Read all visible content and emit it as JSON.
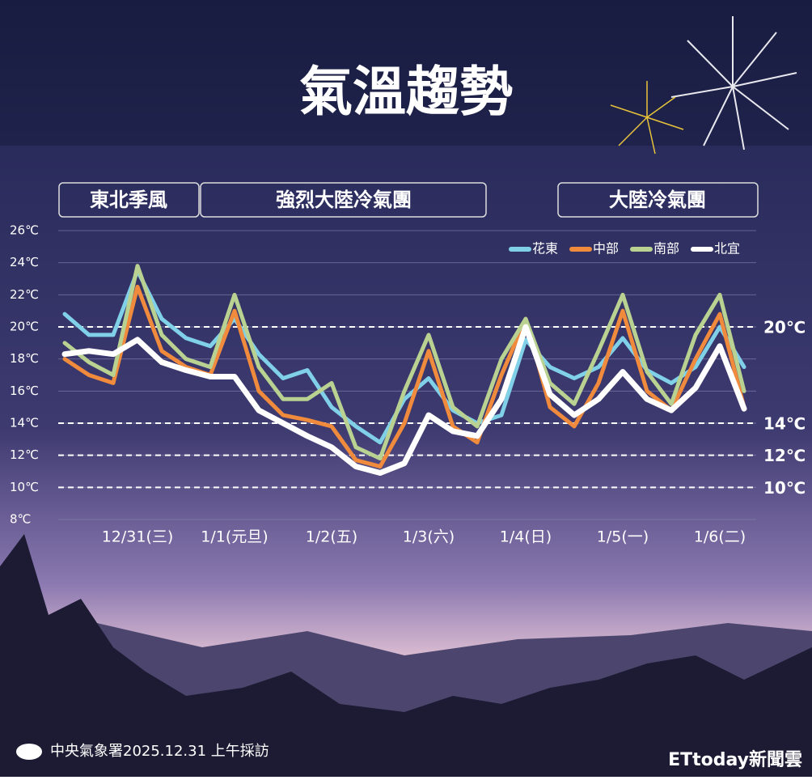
{
  "chart_data": {
    "type": "line",
    "title": "氣溫趨勢",
    "annotations": [
      "東北季風",
      "強烈大陸冷氣團",
      "大陸冷氣團"
    ],
    "categories": [
      null,
      null,
      null,
      "12/31(三)",
      null,
      null,
      null,
      "1/1(元旦)",
      null,
      null,
      null,
      "1/2(五)",
      null,
      null,
      null,
      "1/3(六)",
      null,
      null,
      null,
      "1/4(日)",
      null,
      null,
      null,
      "1/5(一)",
      null,
      null,
      null,
      "1/6(二)",
      null
    ],
    "series": [
      {
        "name": "花東",
        "color": "#80d0e8",
        "values": [
          20.8,
          19.5,
          19.5,
          23.5,
          20.5,
          19.3,
          18.8,
          20.5,
          18.3,
          16.8,
          17.3,
          15,
          13.8,
          12.8,
          15.5,
          16.8,
          14.8,
          14,
          14.5,
          19.2,
          17.5,
          16.8,
          17.5,
          19.3,
          17.3,
          16.5,
          17.5,
          20,
          17.5
        ]
      },
      {
        "name": "中部",
        "color": "#f08a3c",
        "values": [
          18,
          17,
          16.5,
          22.5,
          18.5,
          17.5,
          17,
          21,
          16,
          14.5,
          14.2,
          13.8,
          11.7,
          11.3,
          14,
          18.5,
          13.8,
          12.8,
          17,
          20.5,
          15,
          13.8,
          16.5,
          21,
          16,
          14.8,
          18,
          20.8,
          15
        ]
      },
      {
        "name": "南部",
        "color": "#b9d191",
        "values": [
          19,
          17.8,
          17,
          23.8,
          19.5,
          18,
          17.5,
          22,
          17.5,
          15.5,
          15.5,
          16.5,
          12.5,
          11.8,
          16,
          19.5,
          15,
          13.8,
          18,
          20.5,
          16.5,
          15.2,
          18.5,
          22,
          17.2,
          15.2,
          19.5,
          22,
          16
        ]
      },
      {
        "name": "北宜",
        "color": "#ffffff",
        "values": [
          18.3,
          18.5,
          18.3,
          19.2,
          17.8,
          17.3,
          16.9,
          16.9,
          14.8,
          14,
          13.2,
          12.5,
          11.3,
          10.9,
          11.5,
          14.5,
          13.5,
          13.2,
          15.5,
          20,
          15.8,
          14.5,
          15.5,
          17.2,
          15.5,
          14.8,
          16.2,
          18.8,
          14.9
        ]
      }
    ],
    "ylim": [
      8,
      26
    ],
    "yticks": [
      {
        "value": 8,
        "label": "8℃"
      },
      {
        "value": 10,
        "label": "10℃"
      },
      {
        "value": 12,
        "label": "12℃"
      },
      {
        "value": 14,
        "label": "14℃"
      },
      {
        "value": 16,
        "label": "16℃"
      },
      {
        "value": 18,
        "label": "18℃"
      },
      {
        "value": 20,
        "label": "20℃"
      },
      {
        "value": 22,
        "label": "22℃"
      },
      {
        "value": 24,
        "label": "24℃"
      },
      {
        "value": 26,
        "label": "26℃"
      }
    ],
    "reference_lines": [
      {
        "value": 20,
        "label": "20℃"
      },
      {
        "value": 14,
        "label": "14℃"
      },
      {
        "value": 12,
        "label": "12℃"
      },
      {
        "value": 10,
        "label": "10℃"
      }
    ],
    "grid": true,
    "legend": "top-right"
  },
  "footer": {
    "source": "中央氣象署2025.12.31 上午採訪",
    "brand": "ETtoday新聞雲"
  }
}
